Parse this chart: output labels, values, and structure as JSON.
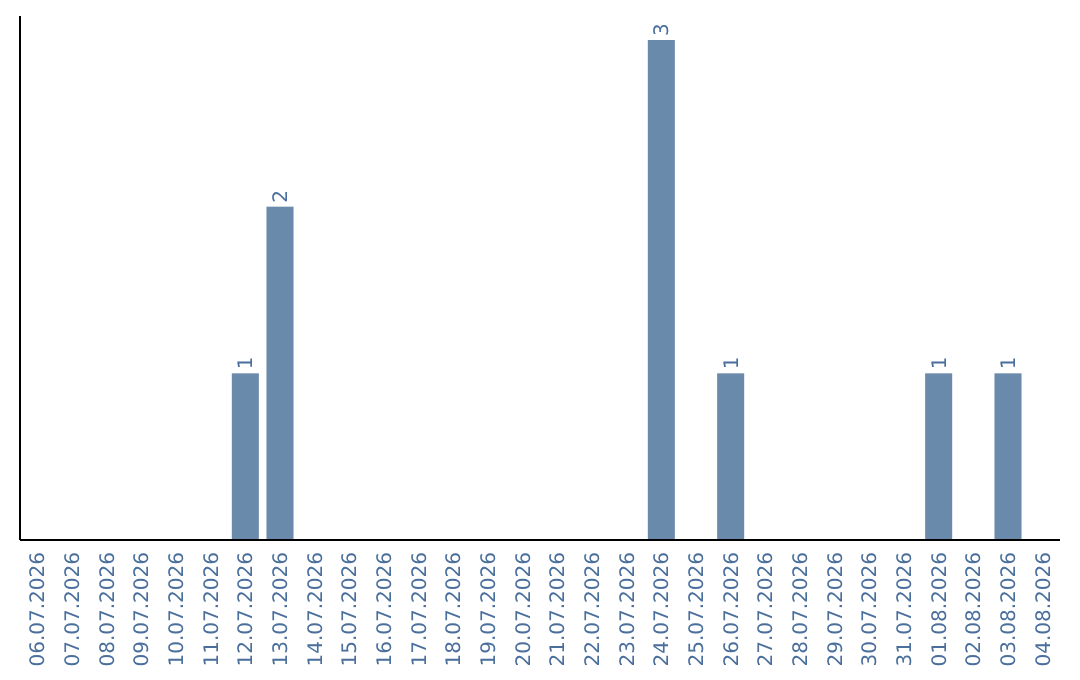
{
  "chart_data": {
    "type": "bar",
    "categories": [
      "06.07.2026",
      "07.07.2026",
      "08.07.2026",
      "09.07.2026",
      "10.07.2026",
      "11.07.2026",
      "12.07.2026",
      "13.07.2026",
      "14.07.2026",
      "15.07.2026",
      "16.07.2026",
      "17.07.2026",
      "18.07.2026",
      "19.07.2026",
      "20.07.2026",
      "21.07.2026",
      "22.07.2026",
      "23.07.2026",
      "24.07.2026",
      "25.07.2026",
      "26.07.2026",
      "27.07.2026",
      "28.07.2026",
      "29.07.2026",
      "30.07.2026",
      "31.07.2026",
      "01.08.2026",
      "02.08.2026",
      "03.08.2026",
      "04.08.2026"
    ],
    "values": [
      0,
      0,
      0,
      0,
      0,
      0,
      1,
      2,
      0,
      0,
      0,
      0,
      0,
      0,
      0,
      0,
      0,
      0,
      3,
      0,
      1,
      0,
      0,
      0,
      0,
      0,
      1,
      0,
      1,
      0
    ],
    "value_labels": [
      null,
      null,
      null,
      null,
      null,
      null,
      "1",
      "2",
      null,
      null,
      null,
      null,
      null,
      null,
      null,
      null,
      null,
      null,
      "3",
      null,
      "1",
      null,
      null,
      null,
      null,
      null,
      "1",
      null,
      "1",
      null
    ],
    "color": "#6a8aac",
    "tick_labels": "x"
  }
}
